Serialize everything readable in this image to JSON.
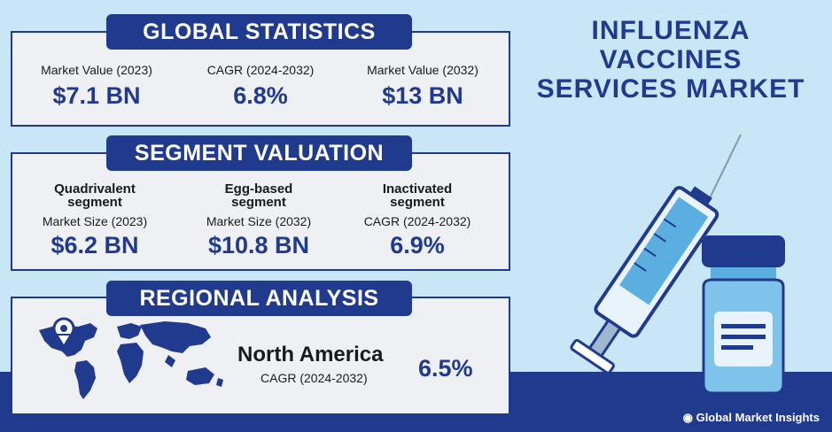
{
  "title": {
    "line1": "INFLUENZA",
    "line2": "VACCINES",
    "line3": "SERVICES MARKET"
  },
  "global": {
    "header": "GLOBAL STATISTICS",
    "stats": [
      {
        "label": "Market Value (2023)",
        "value": "$7.1 BN"
      },
      {
        "label": "CAGR (2024-2032)",
        "value": "6.8%"
      },
      {
        "label": "Market Value (2032)",
        "value": "$13 BN"
      }
    ]
  },
  "segment": {
    "header": "SEGMENT VALUATION",
    "items": [
      {
        "name1": "Quadrivalent",
        "name2": "segment",
        "label": "Market Size (2023)",
        "value": "$6.2 BN"
      },
      {
        "name1": "Egg-based",
        "name2": "segment",
        "label": "Market Size (2032)",
        "value": "$10.8 BN"
      },
      {
        "name1": "Inactivated",
        "name2": "segment",
        "label": "CAGR (2024-2032)",
        "value": "6.9%"
      }
    ]
  },
  "regional": {
    "header": "REGIONAL ANALYSIS",
    "region": "North America",
    "label": "CAGR (2024-2032)",
    "value": "6.5%"
  },
  "brand": "Global Market Insights",
  "colors": {
    "navy": "#203a8e",
    "background": "#c9e6f7",
    "panel": "#eef0f3"
  }
}
